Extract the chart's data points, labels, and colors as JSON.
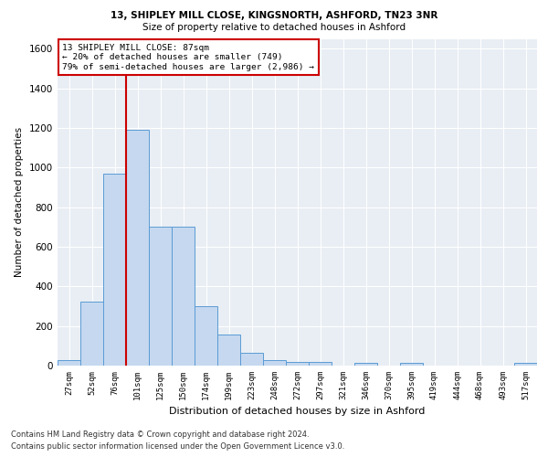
{
  "title1": "13, SHIPLEY MILL CLOSE, KINGSNORTH, ASHFORD, TN23 3NR",
  "title2": "Size of property relative to detached houses in Ashford",
  "xlabel": "Distribution of detached houses by size in Ashford",
  "ylabel": "Number of detached properties",
  "categories": [
    "27sqm",
    "52sqm",
    "76sqm",
    "101sqm",
    "125sqm",
    "150sqm",
    "174sqm",
    "199sqm",
    "223sqm",
    "248sqm",
    "272sqm",
    "297sqm",
    "321sqm",
    "346sqm",
    "370sqm",
    "395sqm",
    "419sqm",
    "444sqm",
    "468sqm",
    "493sqm",
    "517sqm"
  ],
  "values": [
    30,
    325,
    970,
    1190,
    700,
    700,
    300,
    155,
    65,
    30,
    20,
    20,
    0,
    15,
    0,
    15,
    0,
    0,
    0,
    0,
    15
  ],
  "bar_color": "#c5d8ef",
  "bar_edge_color": "#5b9bd5",
  "vline_color": "#cc0000",
  "vline_x": 2.5,
  "annotation_line1": "13 SHIPLEY MILL CLOSE: 87sqm",
  "annotation_line2": "← 20% of detached houses are smaller (749)",
  "annotation_line3": "79% of semi-detached houses are larger (2,986) →",
  "annotation_box_color": "#ffffff",
  "annotation_box_edge": "#cc0000",
  "ylim": [
    0,
    1650
  ],
  "yticks": [
    0,
    200,
    400,
    600,
    800,
    1000,
    1200,
    1400,
    1600
  ],
  "bg_color": "#e8eef4",
  "grid_color": "#ffffff",
  "footer1": "Contains HM Land Registry data © Crown copyright and database right 2024.",
  "footer2": "Contains public sector information licensed under the Open Government Licence v3.0."
}
